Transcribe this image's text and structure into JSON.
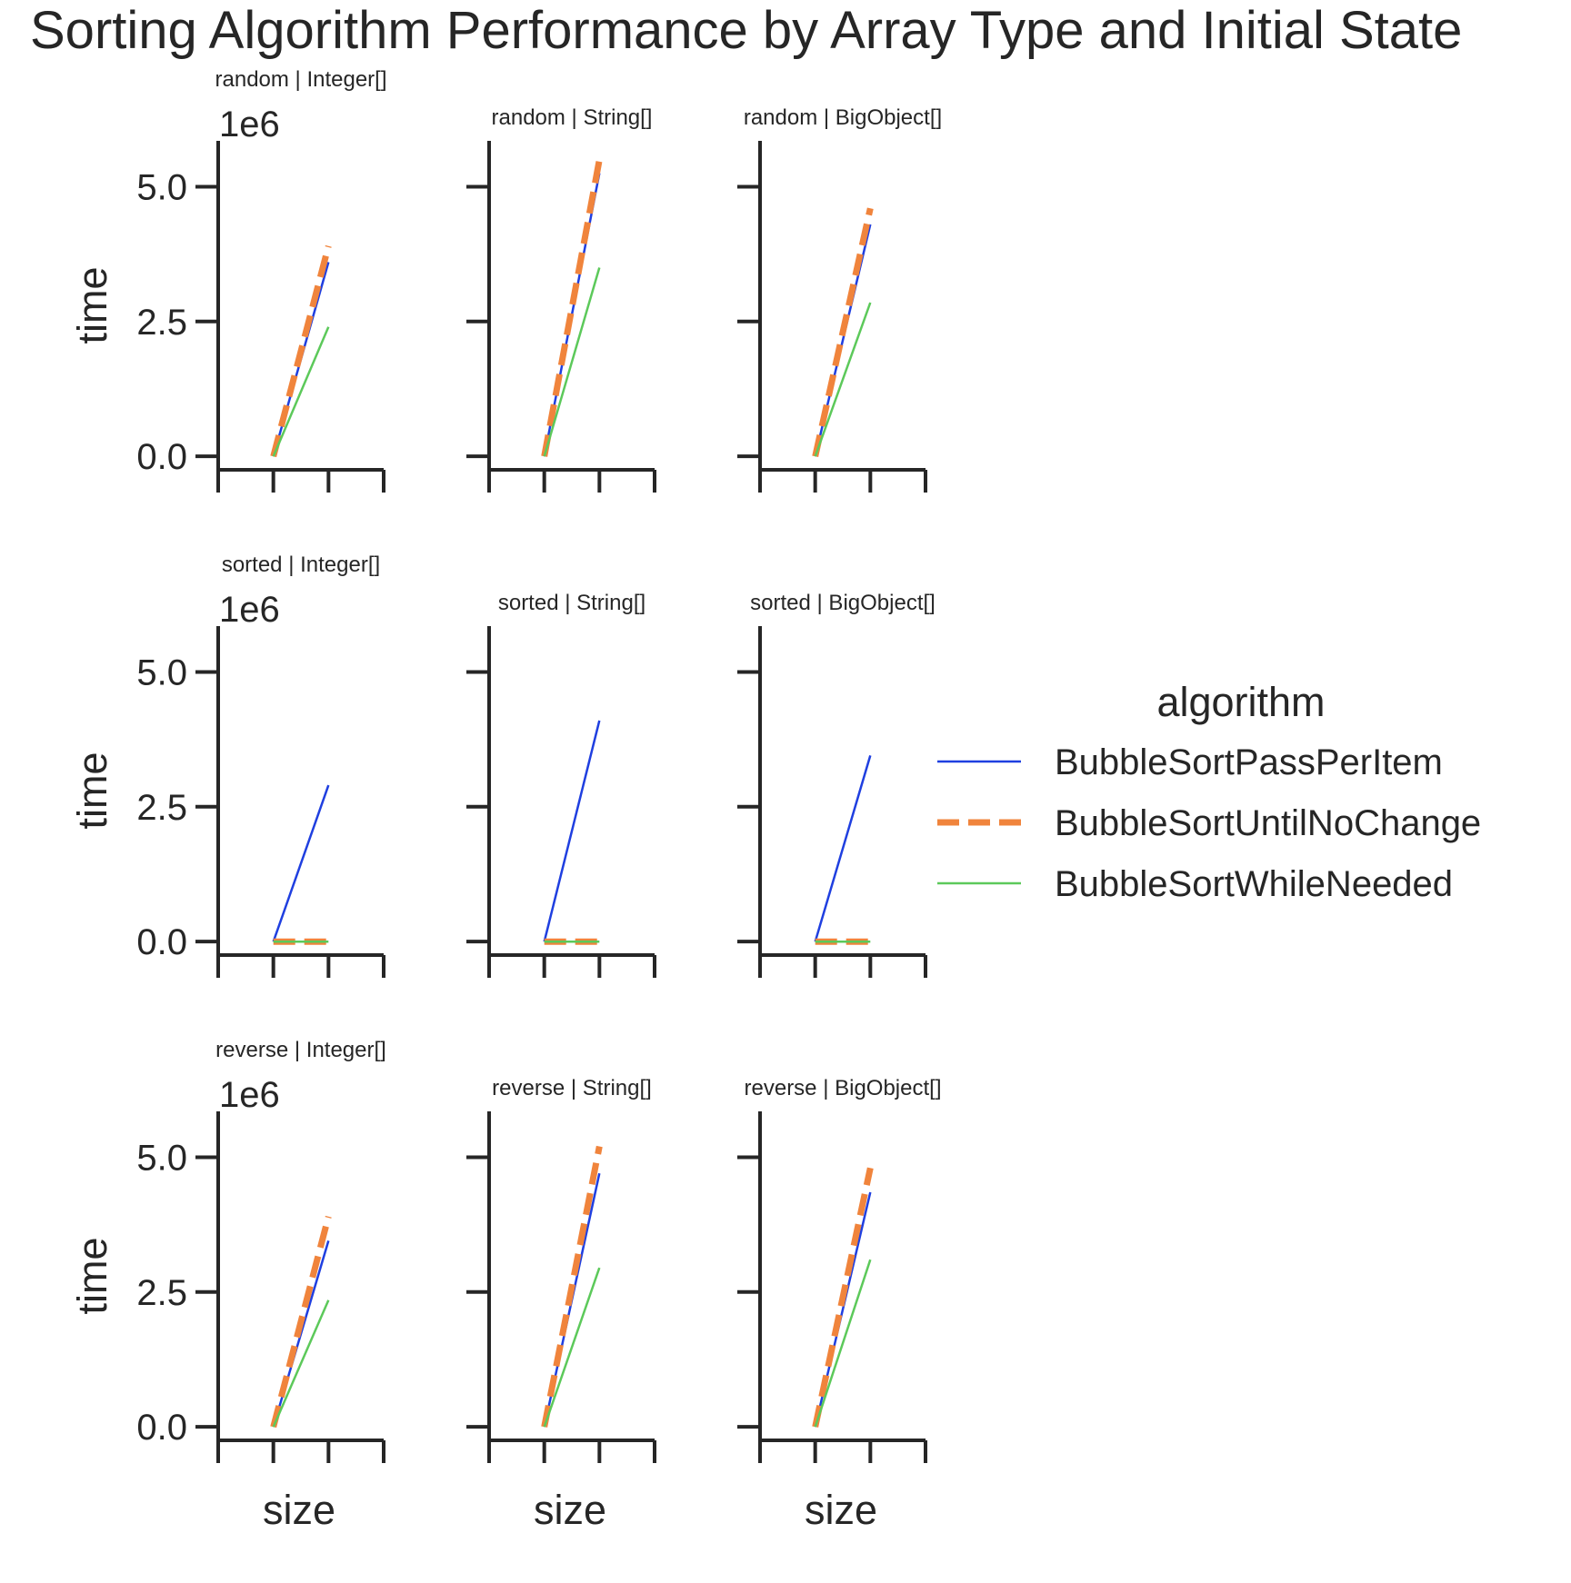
{
  "chart_data": {
    "type": "line",
    "title": "Sorting Algorithm Performance by Array Type and Initial State",
    "xlabel": "size",
    "ylabel": "time",
    "y_offset_label": "1e6",
    "y_ticks": [
      0.0,
      2.5,
      5.0
    ],
    "y_tick_labels": [
      "0.0",
      "2.5",
      "5.0"
    ],
    "ylim": [
      -0.25,
      5.85
    ],
    "x_tick_count": 4,
    "grid": false,
    "legend": {
      "title": "algorithm",
      "placement": "right"
    },
    "series_styles": [
      {
        "name": "BubbleSortPassPerItem",
        "color": "#1f3fe0",
        "dash": "solid",
        "width": "thin"
      },
      {
        "name": "BubbleSortUntilNoChange",
        "color": "#f0843c",
        "dash": "dashed",
        "width": "thick"
      },
      {
        "name": "BubbleSortWhileNeeded",
        "color": "#5cc95a",
        "dash": "solid",
        "width": "thin"
      }
    ],
    "rows": [
      {
        "label": "random",
        "y_label_shown": true
      },
      {
        "label": "sorted",
        "y_label_shown": true
      },
      {
        "label": "reverse",
        "y_label_shown": true
      }
    ],
    "panels": [
      {
        "title": "random | Integer[]",
        "row": 0,
        "col": 0,
        "series": [
          {
            "name": "BubbleSortPassPerItem",
            "x": [
              1,
              2
            ],
            "values": [
              0.0,
              3.6
            ]
          },
          {
            "name": "BubbleSortUntilNoChange",
            "x": [
              1,
              2
            ],
            "values": [
              0.0,
              3.9
            ]
          },
          {
            "name": "BubbleSortWhileNeeded",
            "x": [
              1,
              2
            ],
            "values": [
              0.0,
              2.4
            ]
          }
        ]
      },
      {
        "title": "random | String[]",
        "row": 0,
        "col": 1,
        "series": [
          {
            "name": "BubbleSortPassPerItem",
            "x": [
              1,
              2
            ],
            "values": [
              0.0,
              5.25
            ]
          },
          {
            "name": "BubbleSortUntilNoChange",
            "x": [
              1,
              2
            ],
            "values": [
              0.0,
              5.5
            ]
          },
          {
            "name": "BubbleSortWhileNeeded",
            "x": [
              1,
              2
            ],
            "values": [
              0.0,
              3.5
            ]
          }
        ]
      },
      {
        "title": "random | BigObject[]",
        "row": 0,
        "col": 2,
        "series": [
          {
            "name": "BubbleSortPassPerItem",
            "x": [
              1,
              2
            ],
            "values": [
              0.0,
              4.3
            ]
          },
          {
            "name": "BubbleSortUntilNoChange",
            "x": [
              1,
              2
            ],
            "values": [
              0.0,
              4.6
            ]
          },
          {
            "name": "BubbleSortWhileNeeded",
            "x": [
              1,
              2
            ],
            "values": [
              0.0,
              2.85
            ]
          }
        ]
      },
      {
        "title": "sorted | Integer[]",
        "row": 1,
        "col": 0,
        "series": [
          {
            "name": "BubbleSortPassPerItem",
            "x": [
              1,
              2
            ],
            "values": [
              0.0,
              2.9
            ]
          },
          {
            "name": "BubbleSortUntilNoChange",
            "x": [
              1,
              2
            ],
            "values": [
              0.0,
              0.0
            ]
          },
          {
            "name": "BubbleSortWhileNeeded",
            "x": [
              1,
              2
            ],
            "values": [
              0.0,
              0.0
            ]
          }
        ]
      },
      {
        "title": "sorted | String[]",
        "row": 1,
        "col": 1,
        "series": [
          {
            "name": "BubbleSortPassPerItem",
            "x": [
              1,
              2
            ],
            "values": [
              0.0,
              4.1
            ]
          },
          {
            "name": "BubbleSortUntilNoChange",
            "x": [
              1,
              2
            ],
            "values": [
              0.0,
              0.0
            ]
          },
          {
            "name": "BubbleSortWhileNeeded",
            "x": [
              1,
              2
            ],
            "values": [
              0.0,
              0.0
            ]
          }
        ]
      },
      {
        "title": "sorted | BigObject[]",
        "row": 1,
        "col": 2,
        "series": [
          {
            "name": "BubbleSortPassPerItem",
            "x": [
              1,
              2
            ],
            "values": [
              0.0,
              3.45
            ]
          },
          {
            "name": "BubbleSortUntilNoChange",
            "x": [
              1,
              2
            ],
            "values": [
              0.0,
              0.0
            ]
          },
          {
            "name": "BubbleSortWhileNeeded",
            "x": [
              1,
              2
            ],
            "values": [
              0.0,
              0.0
            ]
          }
        ]
      },
      {
        "title": "reverse | Integer[]",
        "row": 2,
        "col": 0,
        "series": [
          {
            "name": "BubbleSortPassPerItem",
            "x": [
              1,
              2
            ],
            "values": [
              0.0,
              3.45
            ]
          },
          {
            "name": "BubbleSortUntilNoChange",
            "x": [
              1,
              2
            ],
            "values": [
              0.0,
              3.9
            ]
          },
          {
            "name": "BubbleSortWhileNeeded",
            "x": [
              1,
              2
            ],
            "values": [
              0.0,
              2.35
            ]
          }
        ]
      },
      {
        "title": "reverse | String[]",
        "row": 2,
        "col": 1,
        "series": [
          {
            "name": "BubbleSortPassPerItem",
            "x": [
              1,
              2
            ],
            "values": [
              0.0,
              4.7
            ]
          },
          {
            "name": "BubbleSortUntilNoChange",
            "x": [
              1,
              2
            ],
            "values": [
              0.0,
              5.2
            ]
          },
          {
            "name": "BubbleSortWhileNeeded",
            "x": [
              1,
              2
            ],
            "values": [
              0.0,
              2.95
            ]
          }
        ]
      },
      {
        "title": "reverse | BigObject[]",
        "row": 2,
        "col": 2,
        "series": [
          {
            "name": "BubbleSortPassPerItem",
            "x": [
              1,
              2
            ],
            "values": [
              0.0,
              4.35
            ]
          },
          {
            "name": "BubbleSortUntilNoChange",
            "x": [
              1,
              2
            ],
            "values": [
              0.0,
              4.8
            ]
          },
          {
            "name": "BubbleSortWhileNeeded",
            "x": [
              1,
              2
            ],
            "values": [
              0.0,
              3.1
            ]
          }
        ]
      }
    ]
  }
}
